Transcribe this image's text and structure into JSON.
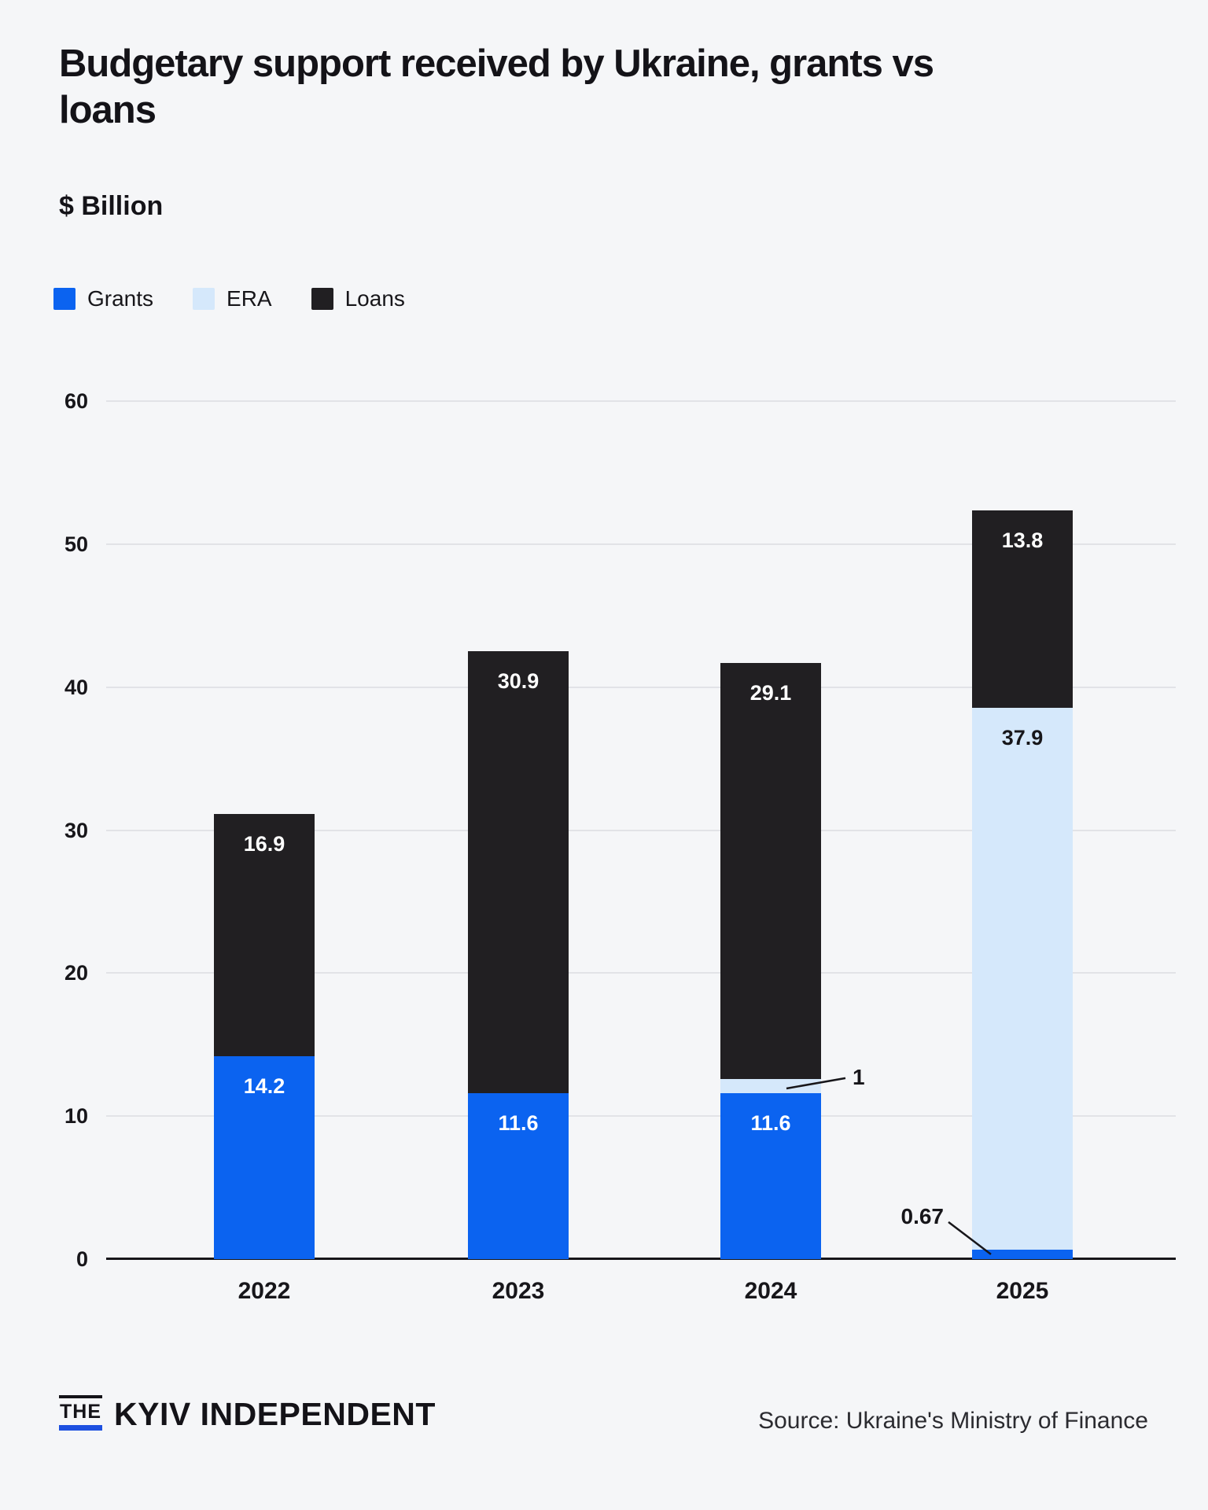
{
  "header": {
    "title": "Budgetary support received by Ukraine, grants vs loans",
    "subtitle": "$ Billion"
  },
  "chart_data": {
    "type": "bar",
    "stacked": true,
    "categories": [
      "2022",
      "2023",
      "2024",
      "2025"
    ],
    "series": [
      {
        "name": "Grants",
        "color": "#0b63f0",
        "label_color": "#ffffff",
        "values": [
          14.2,
          11.6,
          11.6,
          0.67
        ]
      },
      {
        "name": "ERA",
        "color": "#d5e8fb",
        "label_color": "#17161a",
        "values": [
          0,
          0,
          1,
          37.9
        ]
      },
      {
        "name": "Loans",
        "color": "#211f22",
        "label_color": "#ffffff",
        "values": [
          16.9,
          30.9,
          29.1,
          13.8
        ]
      }
    ],
    "totals": [
      31.1,
      42.5,
      41.7,
      52.37
    ],
    "ylim": [
      0,
      60
    ],
    "yticks": [
      0,
      10,
      20,
      30,
      40,
      50,
      60
    ],
    "grid": true,
    "legend_position": "top",
    "annotations": [
      {
        "text": "1",
        "category": "2024",
        "series": "ERA",
        "side": "right"
      },
      {
        "text": "0.67",
        "category": "2025",
        "series": "Grants",
        "side": "left"
      }
    ],
    "colors": {
      "background": "#f5f6f8",
      "gridline": "#e2e3e7",
      "axis": "#17161a"
    }
  },
  "footer": {
    "logo_the": "THE",
    "logo_name": "KYIV INDEPENDENT",
    "source": "Source: Ukraine's Ministry of Finance"
  }
}
